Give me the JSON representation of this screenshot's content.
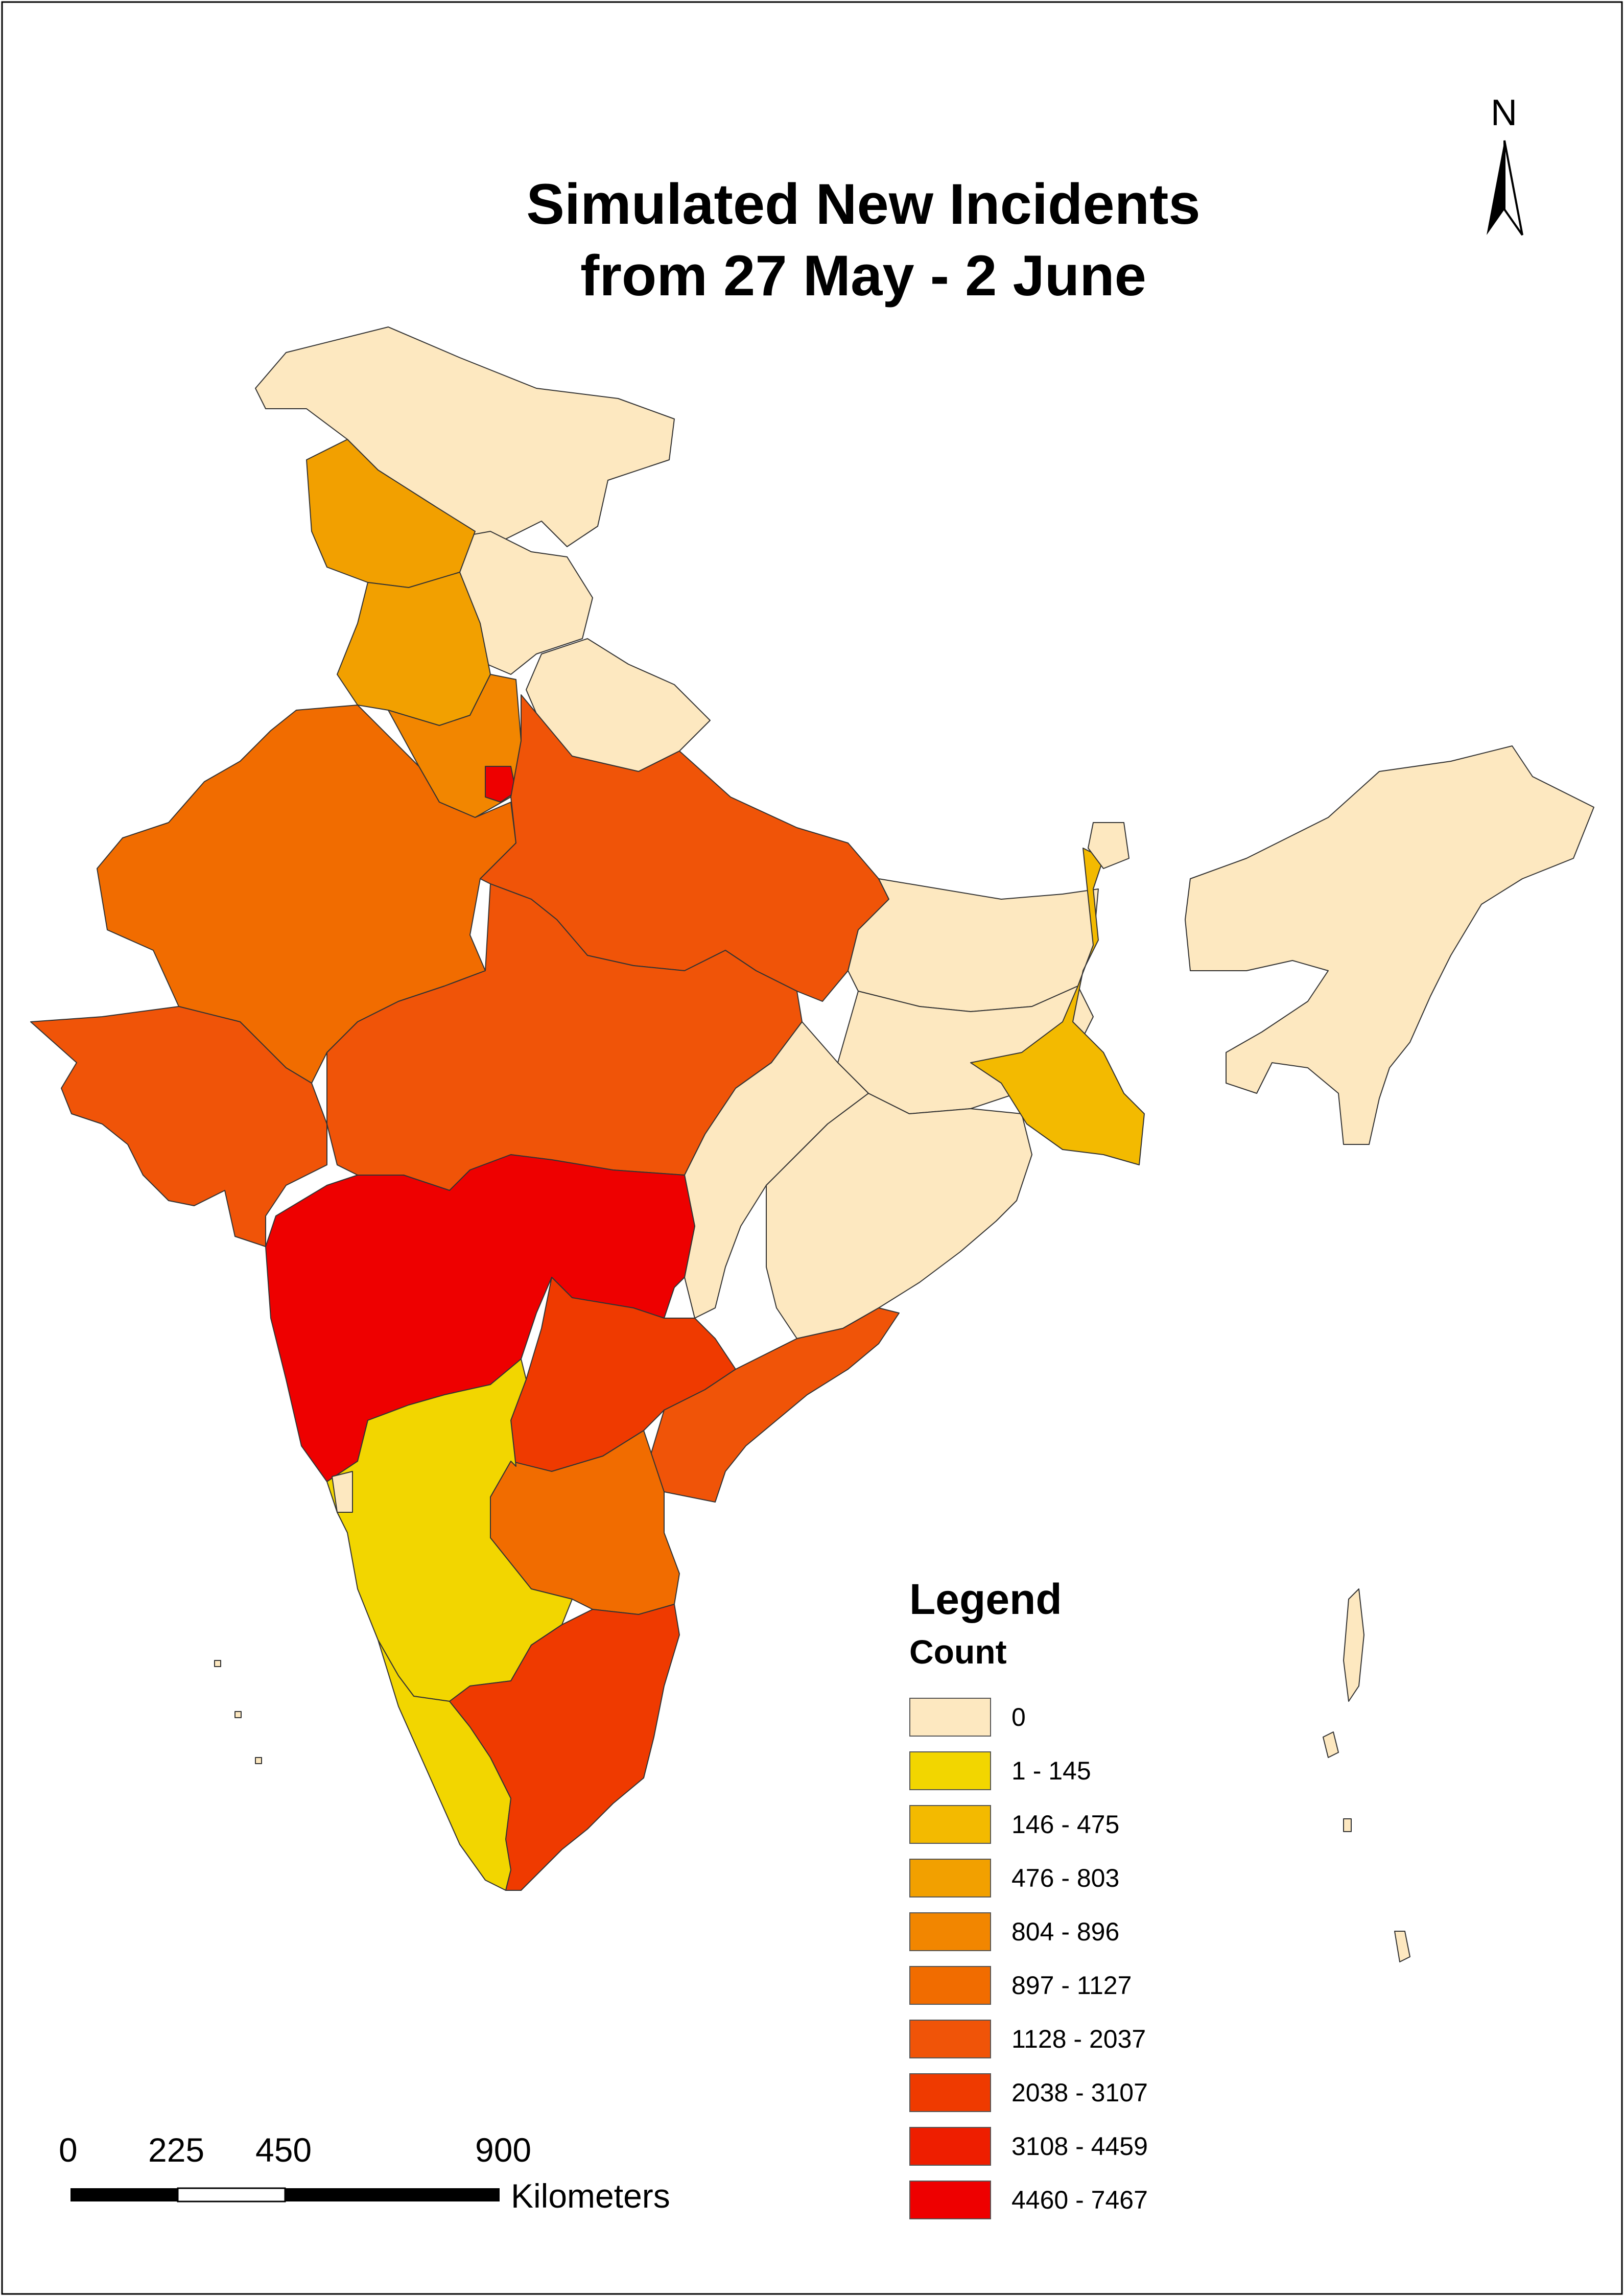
{
  "title_line1": "Simulated New Incidents",
  "title_line2": "from 27 May - 2 June",
  "north_label": "N",
  "legend": {
    "title": "Legend",
    "subtitle": "Count",
    "classes": [
      {
        "label": "0",
        "color": "#fde8c0"
      },
      {
        "label": "1 - 145",
        "color": "#f2d600"
      },
      {
        "label": "146 - 475",
        "color": "#f3ba00"
      },
      {
        "label": "476 - 803",
        "color": "#f2a000"
      },
      {
        "label": "804 - 896",
        "color": "#f28600"
      },
      {
        "label": "897 - 1127",
        "color": "#f16c00"
      },
      {
        "label": "1128 - 2037",
        "color": "#f05408"
      },
      {
        "label": "2038 - 3107",
        "color": "#ef3a00"
      },
      {
        "label": "3108 - 4459",
        "color": "#ee1e00"
      },
      {
        "label": "4460 - 7467",
        "color": "#ee0000"
      }
    ]
  },
  "scalebar": {
    "ticks": [
      "0",
      "225",
      "450",
      "900"
    ],
    "units": "Kilometers"
  },
  "regions": [
    {
      "name": "Jammu and Kashmir",
      "class": "0"
    },
    {
      "name": "Himachal Pradesh",
      "class": "0"
    },
    {
      "name": "Uttarakhand",
      "class": "0"
    },
    {
      "name": "Punjab",
      "class": "476 - 803"
    },
    {
      "name": "Haryana",
      "class": "476 - 803"
    },
    {
      "name": "Haryana (south)",
      "class": "804 - 896"
    },
    {
      "name": "Delhi",
      "class": "4460 - 7467"
    },
    {
      "name": "Rajasthan",
      "class": "897 - 1127"
    },
    {
      "name": "Uttar Pradesh",
      "class": "1128 - 2037"
    },
    {
      "name": "Gujarat",
      "class": "1128 - 2037"
    },
    {
      "name": "Madhya Pradesh",
      "class": "1128 - 2037"
    },
    {
      "name": "Bihar",
      "class": "0"
    },
    {
      "name": "Jharkhand",
      "class": "0"
    },
    {
      "name": "Chhattisgarh",
      "class": "0"
    },
    {
      "name": "Odisha",
      "class": "0"
    },
    {
      "name": "West Bengal",
      "class": "146 - 475"
    },
    {
      "name": "Sikkim",
      "class": "0"
    },
    {
      "name": "North East",
      "class": "0"
    },
    {
      "name": "Maharashtra",
      "class": "4460 - 7467"
    },
    {
      "name": "Telangana",
      "class": "2038 - 3107"
    },
    {
      "name": "Andhra Pradesh",
      "class": "1128 - 2037"
    },
    {
      "name": "Andhra Pradesh (south)",
      "class": "897 - 1127"
    },
    {
      "name": "Karnataka",
      "class": "1 - 145"
    },
    {
      "name": "Goa",
      "class": "0"
    },
    {
      "name": "Kerala",
      "class": "1 - 145"
    },
    {
      "name": "Tamil Nadu",
      "class": "2038 - 3107"
    },
    {
      "name": "Andaman and Nicobar Islands",
      "class": "0"
    },
    {
      "name": "Lakshadweep",
      "class": "0"
    }
  ]
}
